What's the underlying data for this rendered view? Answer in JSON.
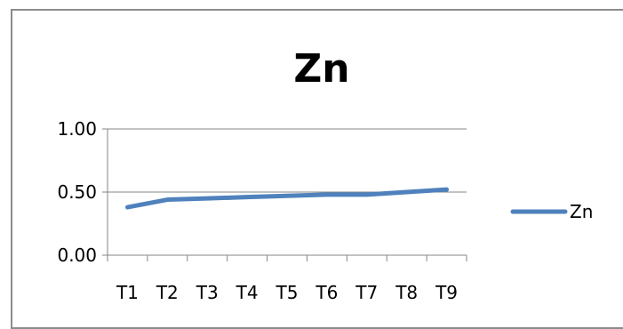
{
  "chart_data": {
    "type": "line",
    "title": "Zn",
    "xlabel": "",
    "ylabel": "",
    "categories": [
      "T1",
      "T2",
      "T3",
      "T4",
      "T5",
      "T6",
      "T7",
      "T8",
      "T9"
    ],
    "series": [
      {
        "name": "Zn",
        "values": [
          0.38,
          0.44,
          0.45,
          0.46,
          0.47,
          0.48,
          0.48,
          0.5,
          0.52
        ],
        "color": "#4f81bd"
      }
    ],
    "ylim": [
      0,
      1.0
    ],
    "yticks": [
      "0.00",
      "0.50",
      "1.00"
    ],
    "grid": true,
    "legend": "right"
  }
}
